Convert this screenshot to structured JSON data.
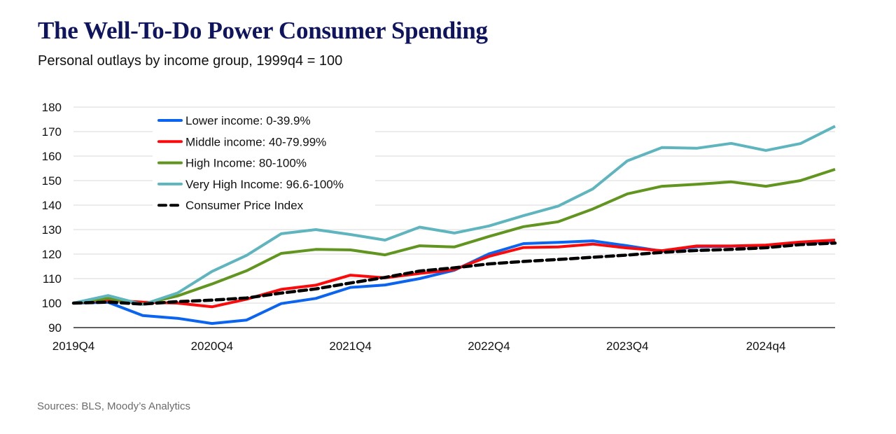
{
  "title": "The Well-To-Do Power Consumer Spending",
  "subtitle": "Personal outlays by income group, 1999q4 = 100",
  "source": "Sources: BLS, Moody’s Analytics",
  "chart_data": {
    "type": "line",
    "title": "The Well-To-Do Power Consumer Spending",
    "subtitle": "Personal outlays by income group, 1999q4 = 100",
    "xlabel": "",
    "ylabel": "",
    "ylim": [
      90,
      180
    ],
    "yticks": [
      90,
      100,
      110,
      120,
      130,
      140,
      150,
      160,
      170,
      180
    ],
    "x": [
      "2019Q4",
      "2020Q1",
      "2020Q2",
      "2020Q3",
      "2020Q4",
      "2021Q1",
      "2021Q2",
      "2021Q3",
      "2021Q4",
      "2022Q1",
      "2022Q2",
      "2022Q3",
      "2022Q4",
      "2023Q1",
      "2023Q2",
      "2023Q3",
      "2023Q4",
      "2024Q1",
      "2024Q2",
      "2024Q3",
      "2024Q4",
      "2025Q1",
      "2025Q2"
    ],
    "xtick_labels": [
      {
        "index": 0,
        "label": "2019Q4"
      },
      {
        "index": 4,
        "label": "2020Q4"
      },
      {
        "index": 8,
        "label": "2021Q4"
      },
      {
        "index": 12,
        "label": "2022Q4"
      },
      {
        "index": 16,
        "label": "2023Q4"
      },
      {
        "index": 20,
        "label": "2024q4"
      }
    ],
    "grid": true,
    "legend_position": "top-left",
    "series": [
      {
        "name": "Lower income: 0-39.9%",
        "color": "#0a64f0",
        "dashed": false,
        "values": [
          100,
          100.3,
          94.9,
          93.8,
          91.7,
          93.1,
          99.8,
          101.9,
          106.4,
          107.4,
          110.0,
          113.4,
          120.1,
          124.3,
          124.8,
          125.4,
          123.4,
          121.2,
          123.0,
          123.2,
          123.5,
          124.7,
          125.0
        ]
      },
      {
        "name": "Middle income: 40-79.99%",
        "color": "#fa0a0a",
        "dashed": false,
        "values": [
          100,
          101.2,
          100.4,
          100.0,
          98.5,
          101.6,
          105.6,
          107.3,
          111.4,
          110.3,
          112.1,
          113.7,
          119.1,
          122.7,
          122.9,
          124.1,
          122.5,
          121.4,
          123.3,
          123.3,
          123.7,
          124.9,
          125.7
        ]
      },
      {
        "name": "High Income: 80-100%",
        "color": "#62951f",
        "dashed": false,
        "values": [
          100,
          101.9,
          99.6,
          102.9,
          107.8,
          113.2,
          120.3,
          121.9,
          121.7,
          119.7,
          123.4,
          122.9,
          127.2,
          131.2,
          133.2,
          138.4,
          144.6,
          147.7,
          148.5,
          149.5,
          147.7,
          150.0,
          154.6
        ]
      },
      {
        "name": "Very High Income: 96.6-100%",
        "color": "#5fb5bd",
        "dashed": false,
        "values": [
          100,
          103.1,
          99.4,
          104.1,
          112.9,
          119.5,
          128.3,
          130.0,
          128.0,
          125.7,
          131.0,
          128.6,
          131.5,
          135.7,
          139.6,
          146.6,
          158.1,
          163.5,
          163.2,
          165.2,
          162.3,
          165.1,
          172.2
        ]
      },
      {
        "name": "Consumer Price Index",
        "color": "#000000",
        "dashed": true,
        "values": [
          100,
          100.4,
          99.6,
          100.6,
          101.2,
          102.1,
          104.1,
          105.8,
          108.2,
          110.5,
          113.1,
          114.4,
          116.0,
          117.0,
          117.8,
          118.7,
          119.6,
          120.7,
          121.5,
          121.9,
          122.6,
          123.9,
          124.5
        ]
      }
    ]
  }
}
